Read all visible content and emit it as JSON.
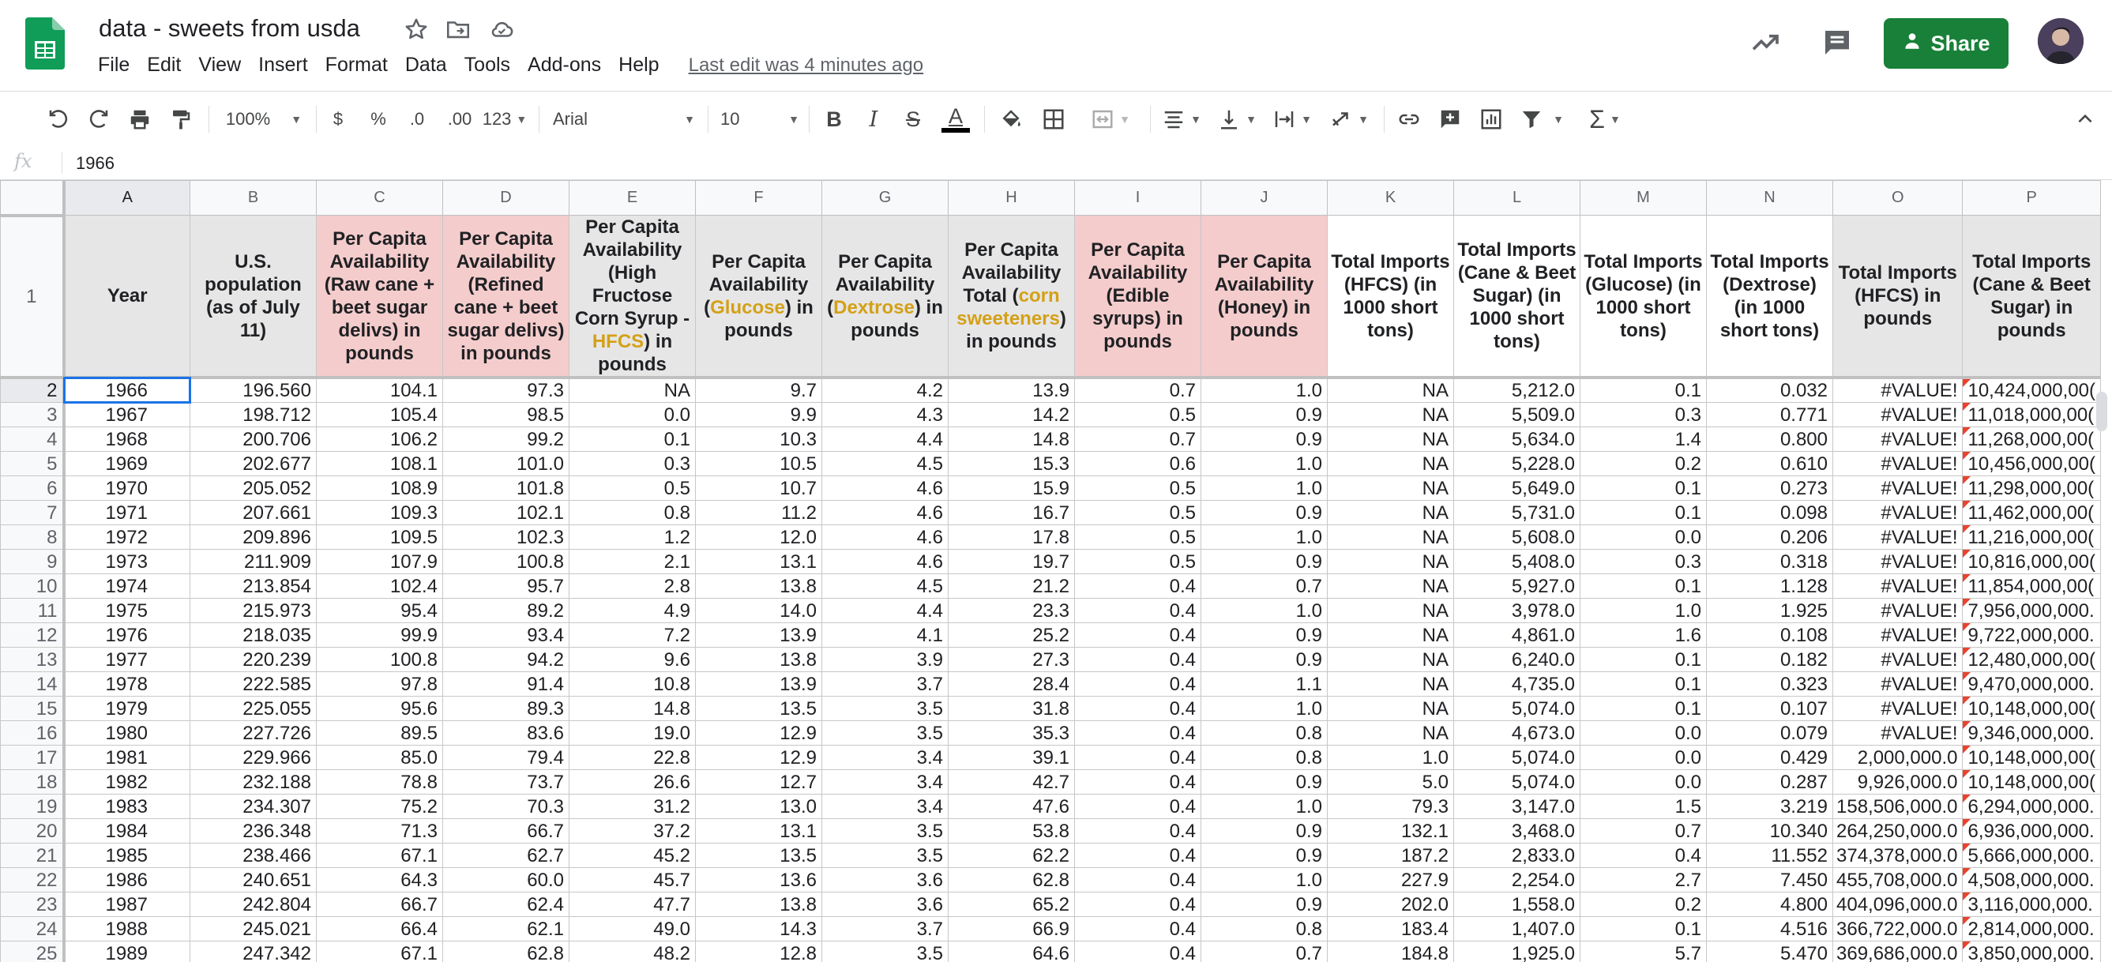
{
  "doc": {
    "title": "data - sweets from usda",
    "last_edit": "Last edit was 4 minutes ago",
    "share_label": "Share"
  },
  "menu": [
    "File",
    "Edit",
    "View",
    "Insert",
    "Format",
    "Data",
    "Tools",
    "Add-ons",
    "Help"
  ],
  "toolbar": {
    "zoom": "100%",
    "currency": "$",
    "percent": "%",
    "decrease_decimals": ".0",
    "increase_decimals": ".00",
    "more_formats": "123",
    "font": "Arial",
    "font_size": "10",
    "bold": "B",
    "italic": "I",
    "strikethrough": "S",
    "text_color": "A"
  },
  "formula_bar": {
    "fx": "fx",
    "value": "1966"
  },
  "selection": {
    "cell": "A2",
    "accent": "#1a73e8"
  },
  "colors": {
    "pink": "#f4cccc",
    "gray": "#e6e6e6",
    "highlight": "#d4a017",
    "share": "#188038"
  },
  "columns": [
    "A",
    "B",
    "C",
    "D",
    "E",
    "F",
    "G",
    "H",
    "I",
    "J",
    "K",
    "L",
    "M",
    "N",
    "O",
    "P"
  ],
  "headers": [
    [
      {
        "t": "Year"
      }
    ],
    [
      {
        "t": "U.S. population (as of July 11)"
      }
    ],
    [
      {
        "t": "Per Capita Availability (Raw cane + beet sugar delivs) in pounds"
      }
    ],
    [
      {
        "t": "Per Capita Availability (Refined cane + beet sugar delivs) in pounds"
      }
    ],
    [
      {
        "t": "Per Capita Availability (High Fructose Corn Syrup - "
      },
      {
        "t": "HFCS",
        "h": true
      },
      {
        "t": ") in pounds"
      }
    ],
    [
      {
        "t": "Per Capita Availability ("
      },
      {
        "t": "Glucose",
        "h": true
      },
      {
        "t": ") in pounds"
      }
    ],
    [
      {
        "t": "Per Capita Availability ("
      },
      {
        "t": "Dextrose",
        "h": true
      },
      {
        "t": ") in pounds"
      }
    ],
    [
      {
        "t": "Per Capita Availability Total ("
      },
      {
        "t": "corn sweeteners",
        "h": true
      },
      {
        "t": ") in pounds"
      }
    ],
    [
      {
        "t": "Per Capita Availability (Edible syrups) in pounds"
      }
    ],
    [
      {
        "t": "Per Capita Availability (Honey) in pounds"
      }
    ],
    [
      {
        "t": "Total Imports (HFCS) (in 1000 short tons)"
      }
    ],
    [
      {
        "t": "Total Imports (Cane & Beet Sugar) (in 1000 short tons)"
      }
    ],
    [
      {
        "t": "Total Imports (Glucose) (in 1000 short tons)"
      }
    ],
    [
      {
        "t": "Total Imports (Dextrose) (in 1000 short tons)"
      }
    ],
    [
      {
        "t": "Total Imports (HFCS) in pounds"
      }
    ],
    [
      {
        "t": "Total Imports (Cane & Beet Sugar) in pounds"
      }
    ]
  ],
  "header_fill": [
    "gray",
    "gray",
    "pink",
    "pink",
    "gray",
    "gray",
    "gray",
    "gray",
    "pink",
    "pink",
    "white",
    "white",
    "white",
    "white",
    "gray",
    "gray"
  ],
  "rows": [
    [
      "1966",
      "196.560",
      "104.1",
      "97.3",
      "NA",
      "9.7",
      "4.2",
      "13.9",
      "0.7",
      "1.0",
      "NA",
      "5,212.0",
      "0.1",
      "0.032",
      "#VALUE!",
      "10,424,000,00("
    ],
    [
      "1967",
      "198.712",
      "105.4",
      "98.5",
      "0.0",
      "9.9",
      "4.3",
      "14.2",
      "0.5",
      "0.9",
      "NA",
      "5,509.0",
      "0.3",
      "0.771",
      "#VALUE!",
      "11,018,000,00("
    ],
    [
      "1968",
      "200.706",
      "106.2",
      "99.2",
      "0.1",
      "10.3",
      "4.4",
      "14.8",
      "0.7",
      "0.9",
      "NA",
      "5,634.0",
      "1.4",
      "0.800",
      "#VALUE!",
      "11,268,000,00("
    ],
    [
      "1969",
      "202.677",
      "108.1",
      "101.0",
      "0.3",
      "10.5",
      "4.5",
      "15.3",
      "0.6",
      "1.0",
      "NA",
      "5,228.0",
      "0.2",
      "0.610",
      "#VALUE!",
      "10,456,000,00("
    ],
    [
      "1970",
      "205.052",
      "108.9",
      "101.8",
      "0.5",
      "10.7",
      "4.6",
      "15.9",
      "0.5",
      "1.0",
      "NA",
      "5,649.0",
      "0.1",
      "0.273",
      "#VALUE!",
      "11,298,000,00("
    ],
    [
      "1971",
      "207.661",
      "109.3",
      "102.1",
      "0.8",
      "11.2",
      "4.6",
      "16.7",
      "0.5",
      "0.9",
      "NA",
      "5,731.0",
      "0.1",
      "0.098",
      "#VALUE!",
      "11,462,000,00("
    ],
    [
      "1972",
      "209.896",
      "109.5",
      "102.3",
      "1.2",
      "12.0",
      "4.6",
      "17.8",
      "0.5",
      "1.0",
      "NA",
      "5,608.0",
      "0.0",
      "0.206",
      "#VALUE!",
      "11,216,000,00("
    ],
    [
      "1973",
      "211.909",
      "107.9",
      "100.8",
      "2.1",
      "13.1",
      "4.6",
      "19.7",
      "0.5",
      "0.9",
      "NA",
      "5,408.0",
      "0.3",
      "0.318",
      "#VALUE!",
      "10,816,000,00("
    ],
    [
      "1974",
      "213.854",
      "102.4",
      "95.7",
      "2.8",
      "13.8",
      "4.5",
      "21.2",
      "0.4",
      "0.7",
      "NA",
      "5,927.0",
      "0.1",
      "1.128",
      "#VALUE!",
      "11,854,000,00("
    ],
    [
      "1975",
      "215.973",
      "95.4",
      "89.2",
      "4.9",
      "14.0",
      "4.4",
      "23.3",
      "0.4",
      "1.0",
      "NA",
      "3,978.0",
      "1.0",
      "1.925",
      "#VALUE!",
      "7,956,000,000."
    ],
    [
      "1976",
      "218.035",
      "99.9",
      "93.4",
      "7.2",
      "13.9",
      "4.1",
      "25.2",
      "0.4",
      "0.9",
      "NA",
      "4,861.0",
      "1.6",
      "0.108",
      "#VALUE!",
      "9,722,000,000."
    ],
    [
      "1977",
      "220.239",
      "100.8",
      "94.2",
      "9.6",
      "13.8",
      "3.9",
      "27.3",
      "0.4",
      "0.9",
      "NA",
      "6,240.0",
      "0.1",
      "0.182",
      "#VALUE!",
      "12,480,000,00("
    ],
    [
      "1978",
      "222.585",
      "97.8",
      "91.4",
      "10.8",
      "13.9",
      "3.7",
      "28.4",
      "0.4",
      "1.1",
      "NA",
      "4,735.0",
      "0.1",
      "0.323",
      "#VALUE!",
      "9,470,000,000."
    ],
    [
      "1979",
      "225.055",
      "95.6",
      "89.3",
      "14.8",
      "13.5",
      "3.5",
      "31.8",
      "0.4",
      "1.0",
      "NA",
      "5,074.0",
      "0.1",
      "0.107",
      "#VALUE!",
      "10,148,000,00("
    ],
    [
      "1980",
      "227.726",
      "89.5",
      "83.6",
      "19.0",
      "12.9",
      "3.5",
      "35.3",
      "0.4",
      "0.8",
      "NA",
      "4,673.0",
      "0.0",
      "0.079",
      "#VALUE!",
      "9,346,000,000."
    ],
    [
      "1981",
      "229.966",
      "85.0",
      "79.4",
      "22.8",
      "12.9",
      "3.4",
      "39.1",
      "0.4",
      "0.8",
      "1.0",
      "5,074.0",
      "0.0",
      "0.429",
      "2,000,000.0",
      "10,148,000,00("
    ],
    [
      "1982",
      "232.188",
      "78.8",
      "73.7",
      "26.6",
      "12.7",
      "3.4",
      "42.7",
      "0.4",
      "0.9",
      "5.0",
      "5,074.0",
      "0.0",
      "0.287",
      "9,926,000.0",
      "10,148,000,00("
    ],
    [
      "1983",
      "234.307",
      "75.2",
      "70.3",
      "31.2",
      "13.0",
      "3.4",
      "47.6",
      "0.4",
      "1.0",
      "79.3",
      "3,147.0",
      "1.5",
      "3.219",
      "158,506,000.0",
      "6,294,000,000."
    ],
    [
      "1984",
      "236.348",
      "71.3",
      "66.7",
      "37.2",
      "13.1",
      "3.5",
      "53.8",
      "0.4",
      "0.9",
      "132.1",
      "3,468.0",
      "0.7",
      "10.340",
      "264,250,000.0",
      "6,936,000,000."
    ],
    [
      "1985",
      "238.466",
      "67.1",
      "62.7",
      "45.2",
      "13.5",
      "3.5",
      "62.2",
      "0.4",
      "0.9",
      "187.2",
      "2,833.0",
      "0.4",
      "11.552",
      "374,378,000.0",
      "5,666,000,000."
    ],
    [
      "1986",
      "240.651",
      "64.3",
      "60.0",
      "45.7",
      "13.6",
      "3.6",
      "62.8",
      "0.4",
      "1.0",
      "227.9",
      "2,254.0",
      "2.7",
      "7.450",
      "455,708,000.0",
      "4,508,000,000."
    ],
    [
      "1987",
      "242.804",
      "66.7",
      "62.4",
      "47.7",
      "13.8",
      "3.6",
      "65.2",
      "0.4",
      "0.9",
      "202.0",
      "1,558.0",
      "0.2",
      "4.800",
      "404,096,000.0",
      "3,116,000,000."
    ],
    [
      "1988",
      "245.021",
      "66.4",
      "62.1",
      "49.0",
      "14.3",
      "3.7",
      "66.9",
      "0.4",
      "0.8",
      "183.4",
      "1,407.0",
      "0.1",
      "4.516",
      "366,722,000.0",
      "2,814,000,000."
    ],
    [
      "1989",
      "247.342",
      "67.1",
      "62.8",
      "48.2",
      "12.8",
      "3.5",
      "64.6",
      "0.4",
      "0.7",
      "184.8",
      "1,925.0",
      "5.7",
      "5.470",
      "369,686,000.0",
      "3,850,000,000."
    ]
  ]
}
